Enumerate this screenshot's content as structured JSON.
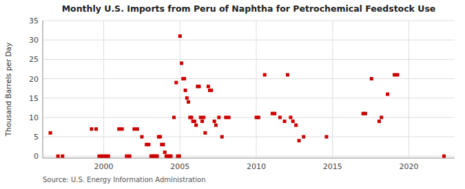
{
  "chart_data": {
    "type": "scatter",
    "title": "Monthly U.S. Imports from Peru of Naphtha for Petrochemical Feedstock Use",
    "ylabel": "Thousand Barrels per Day",
    "source": "Source: U.S. Energy Information Administration",
    "color": "#cc0000",
    "marker": "square",
    "grid": true,
    "xlim": [
      1996.0,
      2023.0
    ],
    "xticks": [
      2000,
      2005,
      2010,
      2015,
      2020
    ],
    "ylim": [
      -0.5,
      35
    ],
    "yticks": [
      0,
      5,
      10,
      15,
      20,
      25,
      30,
      35
    ],
    "x": [
      1996.5,
      1997.0,
      1997.3,
      1999.2,
      1999.5,
      1999.7,
      1999.85,
      2000.0,
      2000.15,
      2000.3,
      2001.0,
      2001.2,
      2001.5,
      2001.7,
      2002.0,
      2002.2,
      2002.5,
      2002.8,
      2002.95,
      2003.1,
      2003.2,
      2003.3,
      2003.4,
      2003.5,
      2003.6,
      2003.7,
      2003.8,
      2003.9,
      2004.0,
      2004.1,
      2004.2,
      2004.3,
      2004.4,
      2004.6,
      2004.75,
      2004.85,
      2004.95,
      2005.0,
      2005.1,
      2005.2,
      2005.28,
      2005.35,
      2005.45,
      2005.55,
      2005.65,
      2005.75,
      2005.85,
      2005.95,
      2006.05,
      2006.15,
      2006.25,
      2006.35,
      2006.45,
      2006.55,
      2006.65,
      2006.85,
      2006.95,
      2007.05,
      2007.25,
      2007.35,
      2007.55,
      2007.75,
      2008.0,
      2008.2,
      2010.0,
      2010.15,
      2010.55,
      2011.05,
      2011.2,
      2011.55,
      2011.85,
      2012.05,
      2012.25,
      2012.4,
      2012.6,
      2012.8,
      2013.1,
      2014.6,
      2017.0,
      2017.15,
      2017.55,
      2018.05,
      2018.2,
      2018.6,
      2019.05,
      2019.25,
      2022.3
    ],
    "values": [
      6,
      0,
      0,
      7,
      7,
      0,
      0,
      0,
      0,
      0,
      7,
      7,
      0,
      0,
      7,
      7,
      5,
      3,
      3,
      0,
      0,
      0,
      0,
      0,
      5,
      5,
      3,
      3,
      1,
      0,
      0,
      0,
      0,
      10,
      19,
      0,
      0,
      31,
      24,
      20,
      20,
      17,
      15,
      14,
      10,
      10,
      9,
      9,
      8,
      18,
      18,
      10,
      9,
      10,
      6,
      18,
      17,
      17,
      9,
      8,
      10,
      5,
      10,
      10,
      10,
      10,
      21,
      11,
      11,
      10,
      9,
      21,
      10,
      9,
      8,
      4,
      5,
      5,
      11,
      11,
      20,
      9,
      10,
      16,
      21,
      21,
      0
    ]
  }
}
